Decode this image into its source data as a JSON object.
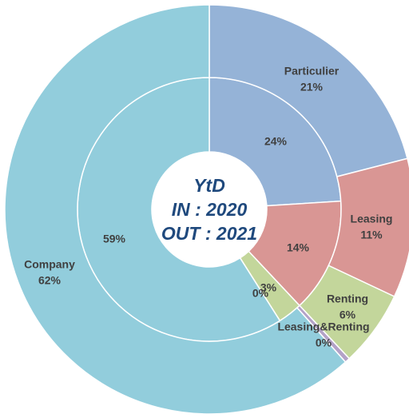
{
  "chart_data": {
    "type": "donut",
    "title": "YtD",
    "categories": [
      "Particulier",
      "Leasing",
      "Renting",
      "Leasing&Renting",
      "Company"
    ],
    "colors": [
      "#95b3d7",
      "#d99694",
      "#c3d69b",
      "#b3a2c7",
      "#92cddc"
    ],
    "series": [
      {
        "name": "IN : 2020",
        "values": [
          24,
          14,
          3,
          0,
          59
        ],
        "value_labels": [
          "24%",
          "14%",
          "3%",
          "0%",
          "59%"
        ]
      },
      {
        "name": "OUT : 2021",
        "values": [
          21,
          11,
          6,
          0.4,
          61.6
        ],
        "value_labels": [
          "21%",
          "11%",
          "6%",
          "0%",
          "62%"
        ]
      }
    ]
  }
}
